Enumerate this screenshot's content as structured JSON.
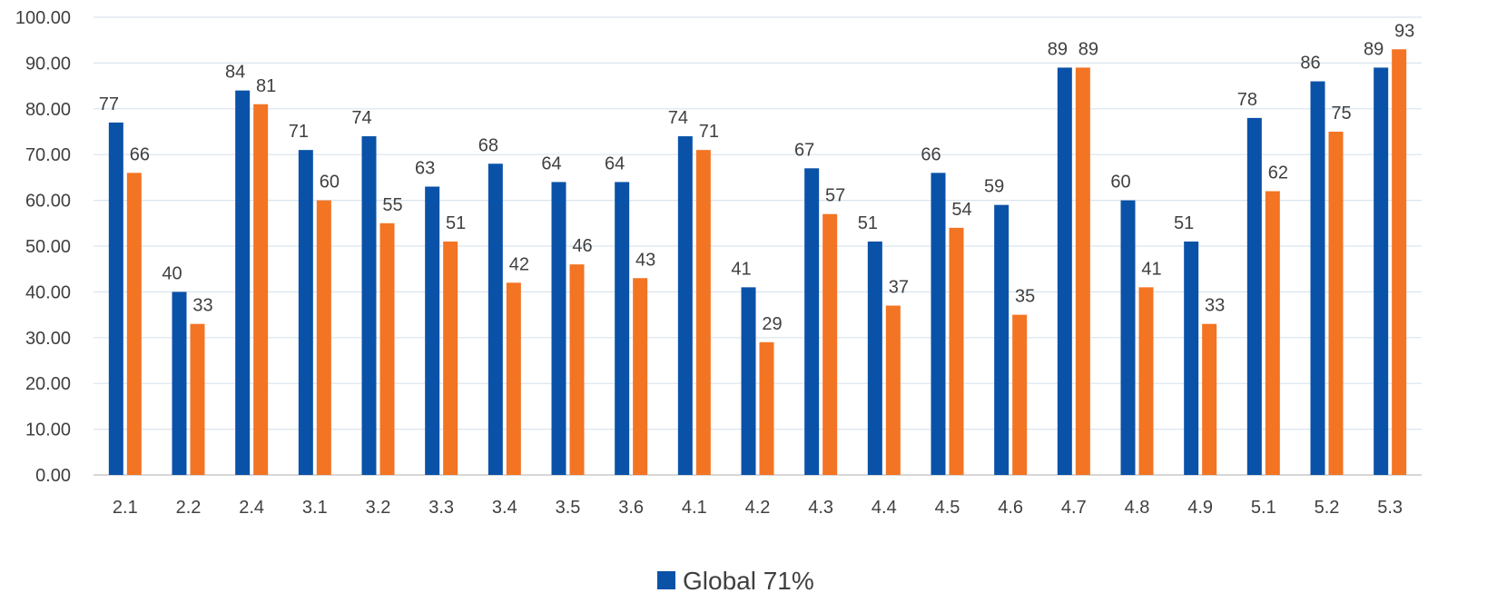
{
  "chart_data": {
    "type": "bar",
    "title": "",
    "xlabel": "",
    "ylabel": "",
    "ylim": [
      0,
      100
    ],
    "ytick_labels": [
      "0.00",
      "10.00",
      "20.00",
      "30.00",
      "40.00",
      "50.00",
      "60.00",
      "70.00",
      "80.00",
      "90.00",
      "100.00"
    ],
    "grid": true,
    "legend_position": "bottom",
    "categories": [
      "2.1",
      "2.2",
      "2.4",
      "3.1",
      "3.2",
      "3.3",
      "3.4",
      "3.5",
      "3.6",
      "4.1",
      "4.2",
      "4.3",
      "4.4",
      "4.5",
      "4.6",
      "4.7",
      "4.8",
      "4.9",
      "5.1",
      "5.2",
      "5.3"
    ],
    "series": [
      {
        "name": "Global 71%",
        "color": "#0a52a8",
        "values": [
          77,
          40,
          84,
          71,
          74,
          63,
          68,
          64,
          64,
          74,
          41,
          67,
          51,
          66,
          59,
          89,
          60,
          51,
          78,
          86,
          89
        ],
        "labels": [
          "77",
          "40",
          "84",
          "71",
          "74",
          "63",
          "68",
          "64",
          "64",
          "74",
          "41",
          "67",
          "51",
          "66",
          "59",
          "89",
          "60",
          "51",
          "78",
          "86",
          "89"
        ],
        "in_legend": true
      },
      {
        "name": "",
        "color": "#f37423",
        "values": [
          66,
          33,
          81,
          60,
          55,
          51,
          42,
          46,
          43,
          71,
          29,
          57,
          37,
          54,
          35,
          89,
          41,
          33,
          62,
          75,
          93
        ],
        "labels": [
          "66",
          "33",
          "81",
          "60",
          "55",
          "51",
          "42",
          "46",
          "43",
          "71",
          "29",
          "57",
          "37",
          "54",
          "35",
          "89",
          "41",
          "33",
          "62",
          "75",
          "93"
        ],
        "in_legend": false
      }
    ]
  }
}
